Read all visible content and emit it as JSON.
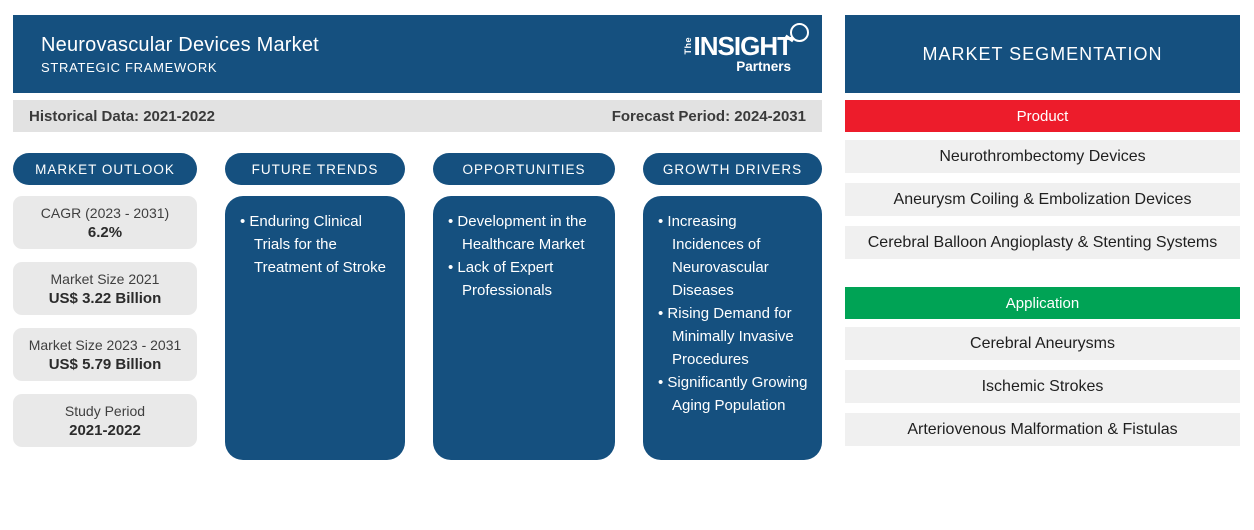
{
  "header": {
    "title": "Neurovascular Devices Market",
    "subtitle": "STRATEGIC FRAMEWORK",
    "logo": {
      "the": "The",
      "insight": "INSIGHT",
      "partners": "Partners"
    }
  },
  "period_bar": {
    "historical": "Historical Data: 2021-2022",
    "forecast": "Forecast Period: 2024-2031"
  },
  "market_outlook": {
    "label": "MARKET OUTLOOK",
    "stats": [
      {
        "label": "CAGR (2023 - 2031)",
        "value": "6.2%"
      },
      {
        "label": "Market Size 2021",
        "value": "US$ 3.22 Billion"
      },
      {
        "label": "Market Size 2023 - 2031",
        "value": "US$ 5.79 Billion"
      },
      {
        "label": "Study Period",
        "value": "2021-2022"
      }
    ]
  },
  "columns": [
    {
      "label": "FUTURE TRENDS",
      "bullets": [
        "Enduring Clinical Trials for the Treatment of Stroke"
      ]
    },
    {
      "label": "OPPORTUNITIES",
      "bullets": [
        "Development in the Healthcare Market",
        "Lack of Expert Professionals"
      ]
    },
    {
      "label": "GROWTH DRIVERS",
      "bullets": [
        "Increasing Incidences of Neurovascular Diseases",
        "Rising Demand for Minimally Invasive Procedures",
        "Significantly Growing Aging Population"
      ]
    }
  ],
  "segmentation": {
    "title": "MARKET SEGMENTATION",
    "groups": [
      {
        "label": "Product",
        "color": "#ed1c2b",
        "items": [
          "Neurothrombectomy Devices",
          "Aneurysm Coiling & Embolization Devices",
          "Cerebral Balloon Angioplasty & Stenting Systems"
        ]
      },
      {
        "label": "Application",
        "color": "#00a355",
        "items": [
          "Cerebral Aneurysms",
          "Ischemic Strokes",
          "Arteriovenous Malformation & Fistulas"
        ]
      }
    ]
  },
  "colors": {
    "primary_blue": "#15507f",
    "red": "#ed1c2b",
    "green": "#00a355"
  }
}
